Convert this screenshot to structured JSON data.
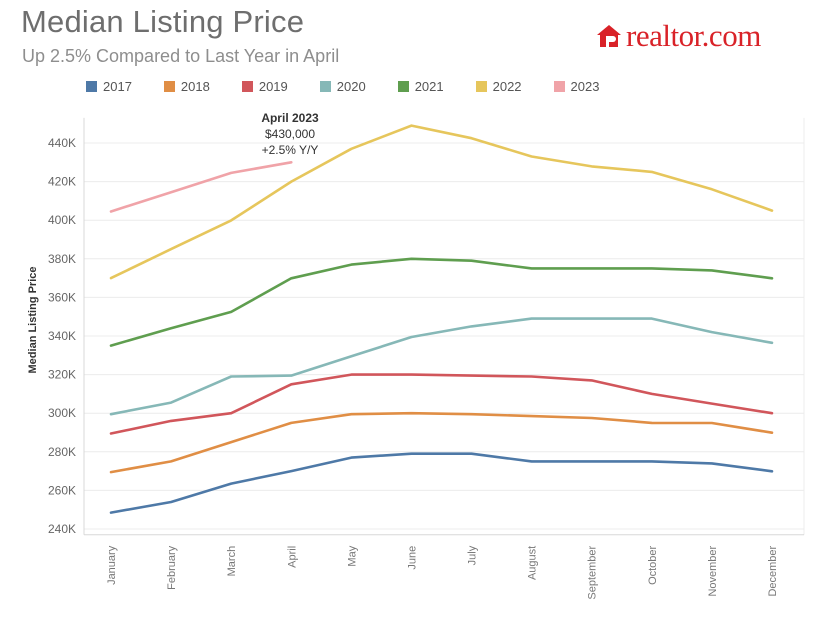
{
  "header": {
    "title": "Median Listing Price",
    "subtitle": "Up 2.5% Compared to Last Year in April"
  },
  "brand": {
    "name": "realtor.com",
    "color": "#d92228"
  },
  "annotation": {
    "title": "April 2023",
    "value": "$430,000",
    "change": "+2.5% Y/Y"
  },
  "chart_data": {
    "type": "line",
    "ylabel": "Median Listing Price",
    "xlabel": "",
    "ylim": [
      237000,
      453000
    ],
    "yticks": [
      240000,
      260000,
      280000,
      300000,
      320000,
      340000,
      360000,
      380000,
      400000,
      420000,
      440000
    ],
    "ytick_labels": [
      "240K",
      "260K",
      "280K",
      "300K",
      "320K",
      "340K",
      "360K",
      "380K",
      "400K",
      "420K",
      "440K"
    ],
    "categories": [
      "January",
      "February",
      "March",
      "April",
      "May",
      "June",
      "July",
      "August",
      "September",
      "October",
      "November",
      "December"
    ],
    "grid": "horizontal",
    "legend_position": "top",
    "series": [
      {
        "name": "2017",
        "color": "#4e79a7",
        "values": [
          248500,
          254000,
          263500,
          270000,
          277000,
          279000,
          279000,
          275000,
          275000,
          275000,
          274000,
          269900
        ]
      },
      {
        "name": "2018",
        "color": "#e08e45",
        "values": [
          269500,
          275000,
          285000,
          295000,
          299500,
          300000,
          299500,
          298500,
          297500,
          295000,
          294900,
          289900
        ]
      },
      {
        "name": "2019",
        "color": "#d1565b",
        "values": [
          289500,
          296000,
          300000,
          315000,
          320000,
          320000,
          319500,
          319000,
          317000,
          310000,
          305000,
          300000
        ]
      },
      {
        "name": "2020",
        "color": "#86b8b7",
        "values": [
          299500,
          305500,
          319000,
          319500,
          329500,
          339500,
          345000,
          349000,
          349000,
          349000,
          342000,
          336500
        ]
      },
      {
        "name": "2021",
        "color": "#5f9e4f",
        "values": [
          335000,
          344000,
          352500,
          369900,
          377000,
          380000,
          379000,
          375000,
          375000,
          375000,
          374000,
          369900
        ]
      },
      {
        "name": "2022",
        "color": "#e6c65c",
        "values": [
          370000,
          385000,
          399900,
          420000,
          437000,
          449000,
          442500,
          433000,
          427900,
          425000,
          416000,
          405000
        ]
      },
      {
        "name": "2023",
        "color": "#f0a3a8",
        "values": [
          404500,
          414500,
          424500,
          430000,
          null,
          null,
          null,
          null,
          null,
          null,
          null,
          null
        ]
      }
    ]
  }
}
